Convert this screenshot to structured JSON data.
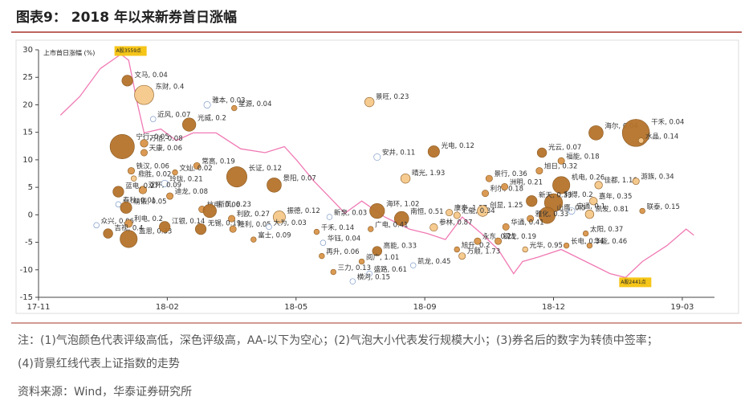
{
  "header": {
    "title": "图表9： 2018 年以来新券首日涨幅"
  },
  "chart_data": {
    "type": "bubble",
    "y_label": "上市首日涨幅 (%)",
    "xlim": [
      0,
      5.25
    ],
    "xticks": [
      {
        "value": 0,
        "label": "17-11"
      },
      {
        "value": 1,
        "label": "18-02"
      },
      {
        "value": 2,
        "label": "18-05"
      },
      {
        "value": 3,
        "label": "18-09"
      },
      {
        "value": 4,
        "label": "18-12"
      },
      {
        "value": 5,
        "label": "19-03"
      }
    ],
    "ylim": [
      -15,
      30
    ],
    "yticks": [
      -15,
      -10,
      -5,
      0,
      5,
      10,
      15,
      20,
      25,
      30
    ],
    "grid": false,
    "index_line": {
      "color": "#f07ab4",
      "x": [
        0.17,
        0.32,
        0.48,
        0.64,
        0.7,
        0.77,
        0.82,
        0.95,
        1.07,
        1.2,
        1.38,
        1.57,
        1.76,
        1.91,
        2.01,
        2.14,
        2.26,
        2.38,
        2.51,
        2.69,
        2.88,
        3.02,
        3.16,
        3.29,
        3.44,
        3.57,
        3.69,
        3.76,
        3.88,
        4.06,
        4.25,
        4.44,
        4.56,
        4.69,
        4.88,
        5.03,
        5.09
      ],
      "y": [
        18.1,
        21.5,
        26.6,
        29.2,
        28.1,
        20.0,
        14.9,
        15.6,
        13.5,
        14.9,
        14.9,
        12.0,
        11.3,
        12.4,
        9.8,
        6.1,
        3.2,
        0.3,
        2.5,
        -0.4,
        -2.6,
        -3.4,
        -4.5,
        -0.4,
        -3.4,
        -6.3,
        -10.7,
        -8.5,
        -7.7,
        -6.3,
        -8.5,
        -10.7,
        -11.4,
        -8.5,
        -5.6,
        -2.6,
        -3.7
      ]
    },
    "annotations": [
      "A股3559点",
      "A股2441点"
    ],
    "bubbles": [
      {
        "label": "文马, 0.04",
        "x": 0.69,
        "y": 24.4,
        "size": 8,
        "color": "#b5732b"
      },
      {
        "label": "东财, 0.4",
        "x": 0.82,
        "y": 21.8,
        "size": 25,
        "color": "#f5c88a"
      },
      {
        "label": "雅本, 0.03",
        "x": 1.31,
        "y": 20.0,
        "size": 3,
        "color": "#ffffff"
      },
      {
        "label": "星源, 0.04",
        "x": 1.52,
        "y": 19.4,
        "size": 2,
        "color": "#d9954a"
      },
      {
        "label": "近风, 0.07",
        "x": 0.89,
        "y": 17.4,
        "size": 2,
        "color": "#ffffff"
      },
      {
        "label": "光威, 0.2",
        "x": 1.17,
        "y": 16.4,
        "size": 12,
        "color": "#b5732b"
      },
      {
        "label": "万信, 0.08",
        "x": 0.82,
        "y": 13.0,
        "size": 4,
        "color": "#d9954a"
      },
      {
        "label": "宁行, 0.05",
        "x": 0.65,
        "y": 12.4,
        "size": 40,
        "color": "#b5732b"
      },
      {
        "label": "天康, 0.06",
        "x": 0.82,
        "y": 11.3,
        "size": 3,
        "color": "#d9954a"
      },
      {
        "label": "常高, 0.19",
        "x": 1.23,
        "y": 8.9,
        "size": 3,
        "color": "#d9954a"
      },
      {
        "label": "长证, 0.12",
        "x": 1.54,
        "y": 6.9,
        "size": 28,
        "color": "#b5732b"
      },
      {
        "label": "铁汉, 0.06",
        "x": 0.72,
        "y": 8.0,
        "size": 3,
        "color": "#d9954a"
      },
      {
        "label": "鼎胜, 0.02",
        "x": 0.74,
        "y": 6.6,
        "size": 2,
        "color": "#f5c88a"
      },
      {
        "label": "玲珑, 0.21",
        "x": 0.98,
        "y": 5.7,
        "size": 3,
        "color": "#ffffff"
      },
      {
        "label": "文灿, 0.02",
        "x": 1.06,
        "y": 7.7,
        "size": 2,
        "color": "#d9954a"
      },
      {
        "label": "双环, 0.09",
        "x": 0.81,
        "y": 4.5,
        "size": 4,
        "color": "#d9954a"
      },
      {
        "label": "迪龙, 0.08",
        "x": 1.02,
        "y": 3.4,
        "size": 3,
        "color": "#d9954a"
      },
      {
        "label": "蓝电, 0.27",
        "x": 0.62,
        "y": 4.2,
        "size": 8,
        "color": "#b5732b"
      },
      {
        "label": "春秋, 0.01",
        "x": 0.62,
        "y": 1.9,
        "size": 2,
        "color": "#ffffff"
      },
      {
        "label": "精锻, 0.05",
        "x": 0.68,
        "y": 1.3,
        "size": 9,
        "color": "#b5732b"
      },
      {
        "label": "众兴, 0.06",
        "x": 0.45,
        "y": -1.9,
        "size": 2,
        "color": "#ffffff"
      },
      {
        "label": "利电, 0.2",
        "x": 0.7,
        "y": -1.6,
        "size": 4,
        "color": "#d9954a"
      },
      {
        "label": "蓝思, 0.33",
        "x": 0.7,
        "y": -4.4,
        "size": 20,
        "color": "#b5732b"
      },
      {
        "label": "吉视, 0.4",
        "x": 0.54,
        "y": -3.4,
        "size": 6,
        "color": "#b5732b"
      },
      {
        "label": "江银, 0.14",
        "x": 0.98,
        "y": -2.2,
        "size": 8,
        "color": "#b5732b"
      },
      {
        "label": "无锡, 0.19",
        "x": 1.26,
        "y": -2.6,
        "size": 8,
        "color": "#b5732b"
      },
      {
        "label": "杭电, 0.06",
        "x": 1.27,
        "y": 1.0,
        "size": 3,
        "color": "#d9954a"
      },
      {
        "label": "隆利, 0.05",
        "x": 1.51,
        "y": -2.6,
        "size": 3,
        "color": "#d9954a"
      },
      {
        "label": "利欧, 0.27",
        "x": 1.5,
        "y": -0.7,
        "size": 3,
        "color": "#d9954a"
      },
      {
        "label": "新凤, 0.23",
        "x": 1.33,
        "y": 0.7,
        "size": 12,
        "color": "#b5732b"
      },
      {
        "label": "富士, 0.09",
        "x": 1.67,
        "y": -4.5,
        "size": 2,
        "color": "#d9954a"
      },
      {
        "label": "景阳, 0.07",
        "x": 1.83,
        "y": 5.4,
        "size": 14,
        "color": "#b5732b"
      },
      {
        "label": "振德, 0.12",
        "x": 1.87,
        "y": -0.4,
        "size": 10,
        "color": "#f5c88a"
      },
      {
        "label": "大为, 0.03",
        "x": 1.79,
        "y": -2.2,
        "size": 2,
        "color": "#ffffff"
      },
      {
        "label": "新泉, 0.03",
        "x": 2.26,
        "y": -0.4,
        "size": 2,
        "color": "#ffffff"
      },
      {
        "label": "千禾, 0.14",
        "x": 2.16,
        "y": -3.1,
        "size": 2,
        "color": "#d9954a"
      },
      {
        "label": "华钰, 0.04",
        "x": 2.21,
        "y": -5.1,
        "size": 2,
        "color": "#ffffff"
      },
      {
        "label": "再升, 0.06",
        "x": 2.2,
        "y": -7.5,
        "size": 2,
        "color": "#d9954a"
      },
      {
        "label": "三力, 0.13",
        "x": 2.29,
        "y": -10.4,
        "size": 2,
        "color": "#d9954a"
      },
      {
        "label": "景旺, 0.23",
        "x": 2.57,
        "y": 20.5,
        "size": 6,
        "color": "#f5c88a"
      },
      {
        "label": "安井, 0.11",
        "x": 2.63,
        "y": 10.5,
        "size": 3,
        "color": "#ffffff"
      },
      {
        "label": "晴光, 1.93",
        "x": 2.85,
        "y": 6.6,
        "size": 6,
        "color": "#f5c88a"
      },
      {
        "label": "光电, 0.12",
        "x": 3.07,
        "y": 11.5,
        "size": 9,
        "color": "#b5732b"
      },
      {
        "label": "海环, 1.02",
        "x": 2.63,
        "y": 0.7,
        "size": 15,
        "color": "#b5732b"
      },
      {
        "label": "南恒, 0.51",
        "x": 2.82,
        "y": -0.7,
        "size": 14,
        "color": "#b5732b"
      },
      {
        "label": "凯龙, 0.45",
        "x": 2.91,
        "y": -9.2,
        "size": 2,
        "color": "#ffffff"
      },
      {
        "label": "万顺, 1.73",
        "x": 3.29,
        "y": -7.5,
        "size": 3,
        "color": "#f5c88a"
      },
      {
        "label": "参林, 0.87",
        "x": 3.07,
        "y": -2.3,
        "size": 4,
        "color": "#f5c88a"
      },
      {
        "label": "广电, 0.41",
        "x": 2.58,
        "y": -2.6,
        "size": 2,
        "color": "#d9954a"
      },
      {
        "label": "高能, 0.33",
        "x": 2.63,
        "y": -6.6,
        "size": 6,
        "color": "#b5732b"
      },
      {
        "label": "阅广, 1.01",
        "x": 2.51,
        "y": -8.5,
        "size": 2,
        "color": "#d9954a"
      },
      {
        "label": "盛路, 0.61",
        "x": 2.57,
        "y": -10.7,
        "size": 2,
        "color": "#ffffff"
      },
      {
        "label": "横河, 0.15",
        "x": 2.44,
        "y": -12.1,
        "size": 2,
        "color": "#ffffff"
      },
      {
        "label": "康泰, 1.27",
        "x": 3.19,
        "y": 0.4,
        "size": 3,
        "color": "#f5c88a"
      },
      {
        "label": "创显, 1.25",
        "x": 3.45,
        "y": 0.7,
        "size": 8,
        "color": "#f5c88a"
      },
      {
        "label": "汇能, 0.34",
        "x": 3.25,
        "y": -0.1,
        "size": 3,
        "color": "#f5c88a"
      },
      {
        "label": "利尔, 0.18",
        "x": 3.47,
        "y": 3.9,
        "size": 3,
        "color": "#d9954a"
      },
      {
        "label": "景行, 0.36",
        "x": 3.5,
        "y": 6.6,
        "size": 3,
        "color": "#d9954a"
      },
      {
        "label": "洲明, 0.21",
        "x": 3.62,
        "y": 5.1,
        "size": 3,
        "color": "#d9954a"
      },
      {
        "label": "永东, 0.21",
        "x": 3.41,
        "y": -4.8,
        "size": 3,
        "color": "#d9954a"
      },
      {
        "label": "旭升, 0.2",
        "x": 3.25,
        "y": -6.3,
        "size": 2,
        "color": "#d9954a"
      },
      {
        "label": "钢龙, 0.19",
        "x": 3.57,
        "y": -4.8,
        "size": 3,
        "color": "#d9954a"
      },
      {
        "label": "光云, 0.07",
        "x": 3.91,
        "y": 11.3,
        "size": 6,
        "color": "#b5732b"
      },
      {
        "label": "海尔, 0.04",
        "x": 4.33,
        "y": 14.9,
        "size": 14,
        "color": "#b5732b"
      },
      {
        "label": "干禾, 0.04",
        "x": 4.64,
        "y": 14.9,
        "size": 50,
        "color": "#b5732b"
      },
      {
        "label": "水晶, 0.14",
        "x": 4.68,
        "y": 13.5,
        "size": 2,
        "color": "#f5c88a"
      },
      {
        "label": "福能, 0.18",
        "x": 4.06,
        "y": 9.8,
        "size": 3,
        "color": "#d9954a"
      },
      {
        "label": "旭日, 0.32",
        "x": 3.89,
        "y": 8.0,
        "size": 3,
        "color": "#d9954a"
      },
      {
        "label": "机电, 0.26",
        "x": 4.06,
        "y": 5.4,
        "size": 20,
        "color": "#b5732b"
      },
      {
        "label": "佳都, 1.16",
        "x": 4.35,
        "y": 5.4,
        "size": 4,
        "color": "#f5c88a"
      },
      {
        "label": "游族, 0.34",
        "x": 4.64,
        "y": 6.1,
        "size": 3,
        "color": "#f5c88a"
      },
      {
        "label": "嘉年, 0.35",
        "x": 4.31,
        "y": 2.5,
        "size": 4,
        "color": "#f5c88a"
      },
      {
        "label": "凯发, 0.81",
        "x": 4.28,
        "y": 0.1,
        "size": 5,
        "color": "#f5c88a"
      },
      {
        "label": "联泰, 0.15",
        "x": 4.69,
        "y": 0.7,
        "size": 2,
        "color": "#d9954a"
      },
      {
        "label": "利得, 0.2",
        "x": 4.0,
        "y": 2.2,
        "size": 22,
        "color": "#b5732b"
      },
      {
        "label": "新天, 0.33",
        "x": 3.83,
        "y": 2.5,
        "size": 8,
        "color": "#b5732b"
      },
      {
        "label": "宝通, 0.1",
        "x": 4.14,
        "y": 0.7,
        "size": 3,
        "color": "#ffffff"
      },
      {
        "label": "山鹰, 0.5",
        "x": 3.95,
        "y": -0.1,
        "size": 18,
        "color": "#b5732b"
      },
      {
        "label": "光华, 0.95",
        "x": 3.78,
        "y": -6.3,
        "size": 2,
        "color": "#f5c88a"
      },
      {
        "label": "太阳, 0.37",
        "x": 4.25,
        "y": -3.4,
        "size": 2,
        "color": "#d9954a"
      },
      {
        "label": "华能, 0.46",
        "x": 4.28,
        "y": -5.6,
        "size": 2,
        "color": "#d9954a"
      },
      {
        "label": "长电, 0.34",
        "x": 4.1,
        "y": -5.6,
        "size": 2,
        "color": "#d9954a"
      },
      {
        "label": "雅化, 0.33",
        "x": 3.82,
        "y": -0.7,
        "size": 3,
        "color": "#d9954a"
      },
      {
        "label": "华通, 0.41",
        "x": 3.63,
        "y": -2.2,
        "size": 3,
        "color": "#d9954a"
      }
    ]
  },
  "notes": [
    "注：(1)气泡颜色代表评级高低，深色评级高，AA-以下为空心；(2)气泡大小代表发行规模大小；(3)券名后的数字为转债中签率；",
    "(4)背景红线代表上证指数的走势"
  ],
  "source": "资料来源：Wind，华泰证券研究所"
}
